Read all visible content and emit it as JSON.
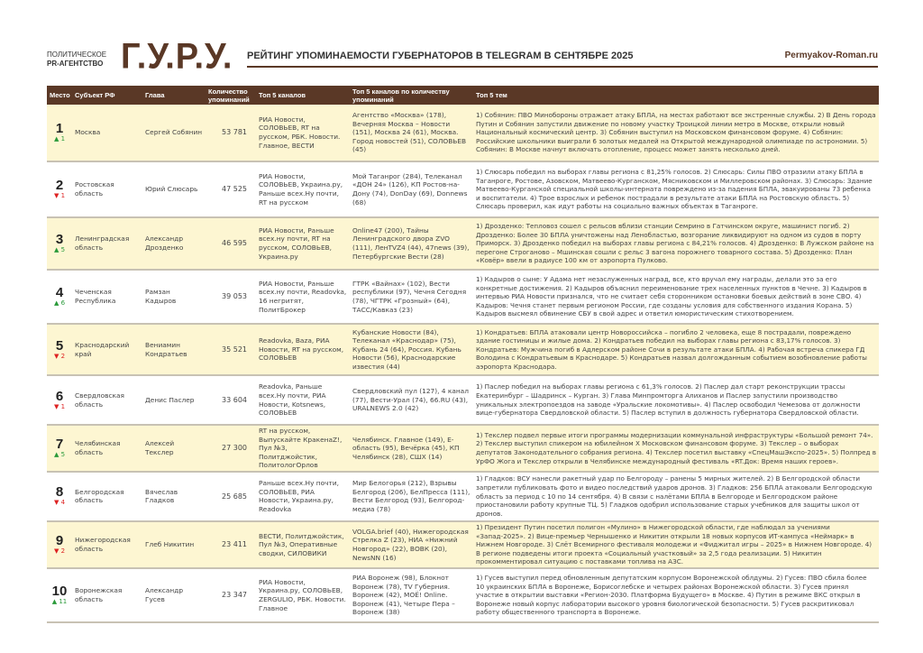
{
  "header": {
    "agency_line1": "ПОЛИТИЧЕСКОЕ",
    "agency_line2": "PR-АГЕНТСТВО",
    "logo": "Г.У.Р.У.",
    "title": "РЕЙТИНГ УПОМИНАЕМОСТИ ГУБЕРНАТОРОВ В TELEGRAM В СЕНТЯБРЕ 2025",
    "site": "Permyakov-Roman.ru"
  },
  "colors": {
    "brand": "#5a3826",
    "row_highlight": "#fdf6d2",
    "up": "#2a9a3a",
    "down": "#dd2222"
  },
  "columns": [
    "Место",
    "Субъект РФ",
    "Глава",
    "Количество упоминаний",
    "Топ 5 каналов",
    "Топ 5 каналов по количеству упоминаний",
    "Топ 5 тем"
  ],
  "rows": [
    {
      "place": "1",
      "dir": "up",
      "change": "▲ 1",
      "region": "Москва",
      "head": "Сергей Собянин",
      "count": "53 781",
      "channels": "РИА Новости, СОЛОВЬЕВ, RT на русском, РБК. Новости. Главное, ВЕСТИ",
      "by_count": "Агентство «Москва» (178), Вечерняя Москва – Новости (151), Москва 24 (61), Москва. Город новостей (51), СОЛОВЬЕВ (45)",
      "themes": "1) Собянин: ПВО Минобороны отражает атаку БПЛА, на местах работают все экстренные службы. 2) В День города Путин и Собянин запустили движение по новому участку Троицкой линии метро в Москве, открыли новый Национальный космический центр. 3) Собянин выступил на Московском финансовом форуме. 4) Собянин: Российские школьники выиграли 6 золотых медалей на Открытой международной олимпиаде по астрономии. 5) Собянин: В Москве начнут включать отопление, процесс может занять несколько дней."
    },
    {
      "place": "2",
      "dir": "down",
      "change": "▼ 1",
      "region": "Ростовская область",
      "head": "Юрий Слюсарь",
      "count": "47 525",
      "channels": "РИА Новости, СОЛОВЬЕВ, Украина.ру, Раньше всех.Ну почти, RT на русском",
      "by_count": "Мой Таганрог (284), Телеканал «ДОН 24» (126), КП Ростов-на-Дону (74), DonDay (69), Donnews (68)",
      "themes": "1) Слюсарь победил на выборах главы региона с 81,25% голосов. 2) Слюсарь: Силы ПВО отразили атаку БПЛА в Таганроге, Ростове, Азовском, Матвеево-Курганском, Мясниковском и Миллеровском районах. 3) Слюсарь: Здание Матвеево-Курганской специальной школы-интерната повреждено из-за падения БПЛА, эвакуированы 73 ребенка и воспитатели. 4) Трое взрослых и ребенок пострадали в результате атаки БПЛА на Ростовскую область. 5) Слюсарь проверил, как идут работы на социально важных объектах в Таганроге."
    },
    {
      "place": "3",
      "dir": "up",
      "change": "▲ 5",
      "region": "Ленинградская область",
      "head": "Александр Дрозденко",
      "count": "46 595",
      "channels": "РИА Новости, Раньше всех.ну почти, RT на русском, СОЛОВЬЕВ, Украина.ру",
      "by_count": "Online47 (200), Тайны Ленинградского двора ZVO (111), ЛенTVZ4 (44), 47news (39), Петербургские Вести (28)",
      "themes": "1) Дрозденко: Тепловоз сошел с рельсов вблизи станции Семрино в Гатчинском округе, машинист погиб. 2) Дрозденко: Более 30 БПЛА уничтожены над Ленобластью, возгорание ликвидируют на одном из судов в порту Приморск. 3) Дрозденко победил на выборах главы региона с 84,21% голосов. 4) Дрозденко: В Лужском районе на перегоне Строганово – Мшинская сошли с рельс 3 вагона порожнего товарного состава. 5) Дрозденко: План «Ковёр» ввели в радиусе 100 км от аэропорта Пулково."
    },
    {
      "place": "4",
      "dir": "up",
      "change": "▲ 6",
      "region": "Чеченская Республика",
      "head": "Рамзан Кадыров",
      "count": "39 053",
      "channels": "РИА Новости, Раньше всех.ну почти, Readovka, 16 негритят, ПолитБрокер",
      "by_count": "ГТРК «Вайнах» (102), Вести республики (97), Чечня Сегодня (78), ЧГТРК «Грозный» (64), ТАСС/Кавказ (23)",
      "themes": "1) Кадыров о сыне: У Адама нет незаслуженных наград, все, кто вручал ему награды, делали это за его конкретные достижения. 2) Кадыров объяснил переименование трех населенных пунктов в Чечне. 3) Кадыров в интервью РИА Новости признался, что не считает себя сторонником остановки боевых действий в зоне СВО. 4) Кадыров: Чечня станет первым регионом России, где созданы условия для собственного издания Корана. 5) Кадыров высмеял обвинение СБУ в свой адрес и ответил юмористическим стихотворением."
    },
    {
      "place": "5",
      "dir": "down",
      "change": "▼ 2",
      "region": "Краснодарский край",
      "head": "Вениамин Кондратьев",
      "count": "35 521",
      "channels": "Readovka, Baza, РИА Новости, RT на русском, СОЛОВЬЕВ",
      "by_count": "Кубанские Новости (84), Телеканал «Краснодар» (75), Кубань 24 (64), Россия. Кубань Новости (56), Краснодарские известия (44)",
      "themes": "1) Кондратьев: БПЛА атаковали центр Новороссийска – погибло 2 человека, еще 8 пострадали, повреждено здание гостиницы и жилые дома. 2) Кондратьев победил на выборах главы региона с 83,17% голосов. 3) Кондратьев: Мужчина погиб в Адлерском районе Сочи в результате атаки БПЛА. 4) Рабочая встреча спикера ГД Володина с Кондратьевым в Краснодаре. 5) Кондратьев назвал долгожданным событием возобновление работы аэропорта Краснодара."
    },
    {
      "place": "6",
      "dir": "down",
      "change": "▼ 1",
      "region": "Свердловская область",
      "head": "Денис Паслер",
      "count": "33 604",
      "channels": "Readovka, Раньше всех.Ну почти, РИА Новости, Kotsnews, СОЛОВЬЕВ",
      "by_count": "Свердловский пул (127), 4 канал (77), Вести-Урал (74), 66.RU (43), URALNEWS 2.0 (42)",
      "themes": "1) Паслер победил на выборах главы региона с 61,3% голосов. 2) Паслер дал старт реконструкции трассы Екатеринбург – Шадринск – Курган. 3) Глава Минпромторга Алиханов и Паслер запустили производство уникальных электропоездов на заводе «Уральские локомотивы». 4) Паслер освободил Чемезова от должности вице-губернатора Свердловской области. 5) Паслер вступил в должность губернатора Свердловской области."
    },
    {
      "place": "7",
      "dir": "up",
      "change": "▲ 5",
      "region": "Челябинская область",
      "head": "Алексей Текслер",
      "count": "27 300",
      "channels": "RT на русском, Выпускайте КракенаZ!, Пул №3, Политджойстик, ПолитологОрлов",
      "by_count": "Челябинск. Главное (149), Е-область (95), Вечёрка (45), КП Челябинск (28), СШХ (14)",
      "themes": "1) Текслер подвел первые итоги программы модернизации коммунальной инфраструктуры «Большой ремонт 74». 2) Текслер выступил спикером на юбилейном X Московском финансовом форуме. 3) Текслер – о выборах депутатов Законодательного собрания региона. 4) Текслер посетил выставку «СпецМашЭкспо-2025». 5) Полпред в УрФО Жога и Текслер открыли в Челябинске международный фестиваль «RT.Док: Время наших героев»."
    },
    {
      "place": "8",
      "dir": "down",
      "change": "▼ 4",
      "region": "Белгородская область",
      "head": "Вячеслав Гладков",
      "count": "25 685",
      "channels": "Раньше всех.Ну почти, СОЛОВЬЕВ, РИА Новости, Украина.ру, Readovka",
      "by_count": "Мир Белогорья (212), Взрывы Белгород (206), БелПресса (111), Вести Белгород (93), Белгород-медиа (78)",
      "themes": "1) Гладков: ВСУ нанесли ракетный удар по Белгороду – ранены 5 мирных жителей. 2) В Белгородской области запретили публиковать фото и видео последствий ударов дронов. 3) Гладков: 256 БПЛА атаковали Белгородскую область за период с 10 по 14 сентября. 4) В связи с налётами БПЛА в Белгороде и Белгородском районе приостановили работу крупные ТЦ. 5) Гладков одобрил использование старых учебников для защиты школ от дронов."
    },
    {
      "place": "9",
      "dir": "down",
      "change": "▼ 2",
      "region": "Нижегородская область",
      "head": "Глеб Никитин",
      "count": "23 411",
      "channels": "ВЕСТИ, Политджойстик, Пул №3, Оперативные сводки, СИЛОВИКИ",
      "by_count": "VOLGA.brief (40), Нижегородская Стрелка Z (23), НИА «Нижний Новгород» (22), ВОВК (20), NewsNN (16)",
      "themes": "1) Президент Путин посетил полигон «Мулино» в Нижегородской области, где наблюдал за учениями «Запад-2025». 2) Вице-премьер Чернышенко и Никитин открыли 18 новых корпусов ИТ-кампуса «Неймарк» в Нижнем Новгороде. 3) Слёт Всемирного фестиваля молодежи и «Фиджитал игры – 2025» в Нижнем Новгороде. 4) В регионе подведены итоги проекта «Социальный участковый» за 2,5 года реализации. 5) Никитин прокомментировал ситуацию с поставками топлива на АЗС."
    },
    {
      "place": "10",
      "dir": "up",
      "change": "▲ 11",
      "region": "Воронежская область",
      "head": "Александр Гусев",
      "count": "23 347",
      "channels": "РИА Новости, Украина.ру, СОЛОВЬЕВ, ZERGULIO, РБК. Новости. Главное",
      "by_count": "РИА Воронеж (98), Блокнот Воронеж (78), TV Губерния. Воронеж (42), МОЁ! Online. Воронеж (41), Четыре Пера – Воронеж (38)",
      "themes": "1) Гусев выступил перед обновленным депутатским корпусом Воронежской облдумы. 2) Гусев: ПВО сбила более 10 украинских БПЛА в Воронеже, Борисоглебске и четырех районах Воронежской области. 3) Гусев принял участие в открытии выставки «Регион-2030. Платформа Будущего» в Москве. 4) Путин в режиме ВКС открыл в Воронеже новый корпус лаборатории высокого уровня биологической безопасности. 5) Гусев раскритиковал работу общественного транспорта в Воронеже."
    }
  ]
}
